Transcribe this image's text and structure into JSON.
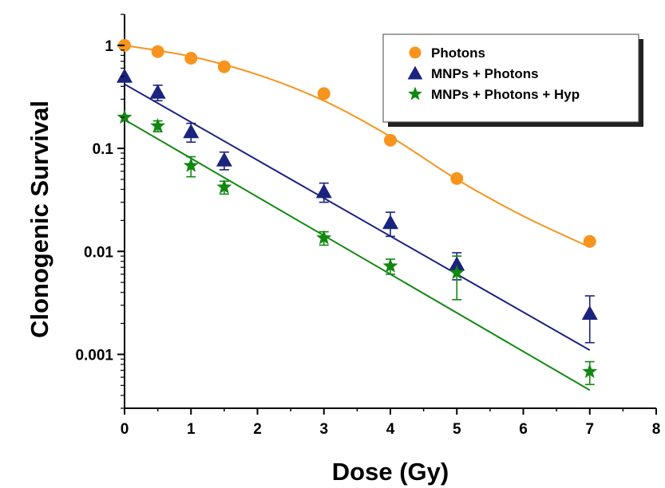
{
  "chart_data": {
    "type": "scatter",
    "xlabel": "Dose (Gy)",
    "ylabel": "Clonogenic Survival",
    "xlim": [
      0,
      8
    ],
    "ylim": [
      0.0003,
      2
    ],
    "yscale": "log",
    "x_ticks": [
      "0",
      "1",
      "2",
      "3",
      "4",
      "5",
      "6",
      "7",
      "8"
    ],
    "y_ticks": [
      {
        "value": 1,
        "label": "1"
      },
      {
        "value": 0.1,
        "label": "0.1"
      },
      {
        "value": 0.01,
        "label": "0.01"
      },
      {
        "value": 0.001,
        "label": "0.001"
      }
    ],
    "grid": false,
    "legend_position": "top-right",
    "series": [
      {
        "name": "Photons",
        "marker": "circle",
        "color": "#f7941d",
        "x": [
          0,
          0.5,
          1,
          1.5,
          3,
          4,
          5,
          7
        ],
        "y": [
          1.0,
          0.87,
          0.75,
          0.62,
          0.34,
          0.12,
          0.051,
          0.0125
        ],
        "err": [
          0,
          0,
          0,
          0,
          0,
          0,
          0,
          0
        ],
        "fit": {
          "x": [
            0,
            1,
            2,
            3,
            4,
            5,
            6,
            7
          ],
          "y": [
            1.0,
            0.78,
            0.52,
            0.29,
            0.13,
            0.05,
            0.022,
            0.011
          ]
        }
      },
      {
        "name": "MNPs + Photons",
        "marker": "triangle",
        "color": "#1a237e",
        "x": [
          0,
          0.5,
          1,
          1.5,
          3,
          4,
          5,
          7
        ],
        "y": [
          0.5,
          0.35,
          0.145,
          0.077,
          0.038,
          0.019,
          0.0075,
          0.0025
        ],
        "err": [
          0,
          0.06,
          0.03,
          0.015,
          0.008,
          0.005,
          0.0022,
          0.0012
        ],
        "fit": {
          "x": [
            0,
            7
          ],
          "y": [
            0.42,
            0.0011
          ]
        }
      },
      {
        "name": "MNPs + Photons + Hyp",
        "marker": "star",
        "color": "#118811",
        "x": [
          0,
          0.5,
          1,
          1.5,
          3,
          4,
          5,
          7
        ],
        "y": [
          0.2,
          0.165,
          0.068,
          0.042,
          0.0135,
          0.0072,
          0.0062,
          0.00068
        ],
        "err": [
          0,
          0.02,
          0.015,
          0.006,
          0.002,
          0.0012,
          0.0028,
          0.00017
        ],
        "fit": {
          "x": [
            0,
            7
          ],
          "y": [
            0.19,
            0.00045
          ]
        }
      }
    ]
  }
}
